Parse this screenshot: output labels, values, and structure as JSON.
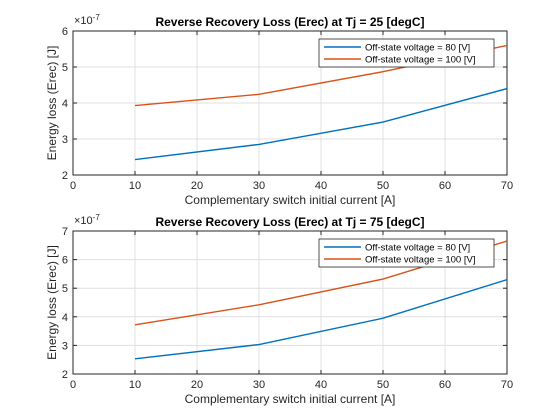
{
  "chart_data": [
    {
      "type": "line",
      "title": "Reverse Recovery Loss (Erec) at Tj = 25 [degC]",
      "xlabel": "Complementary switch initial current [A]",
      "ylabel": "Energy loss (Erec) [J]",
      "exponent_label": "×10",
      "exponent_power": "-7",
      "xlim": [
        0,
        70
      ],
      "ylim": [
        2,
        6
      ],
      "xticks": [
        "0",
        "10",
        "20",
        "30",
        "40",
        "50",
        "60",
        "70"
      ],
      "yticks": [
        "2",
        "3",
        "4",
        "5",
        "6"
      ],
      "grid": true,
      "legend_position": "top-right",
      "x": [
        10,
        30,
        50,
        70
      ],
      "series": [
        {
          "name": "Off-state voltage = 80 [V]",
          "color": "#0072bd",
          "values": [
            2.43,
            2.85,
            3.47,
            4.4
          ]
        },
        {
          "name": "Off-state voltage = 100 [V]",
          "color": "#d95319",
          "values": [
            3.93,
            4.24,
            4.87,
            5.6
          ]
        }
      ]
    },
    {
      "type": "line",
      "title": "Reverse Recovery Loss (Erec) at Tj = 75 [degC]",
      "xlabel": "Complementary switch initial current [A]",
      "ylabel": "Energy loss (Erec) [J]",
      "exponent_label": "×10",
      "exponent_power": "-7",
      "xlim": [
        0,
        70
      ],
      "ylim": [
        2,
        7
      ],
      "xticks": [
        "0",
        "10",
        "20",
        "30",
        "40",
        "50",
        "60",
        "70"
      ],
      "yticks": [
        "2",
        "3",
        "4",
        "5",
        "6",
        "7"
      ],
      "grid": true,
      "legend_position": "top-right",
      "x": [
        10,
        30,
        50,
        70
      ],
      "series": [
        {
          "name": "Off-state voltage = 80 [V]",
          "color": "#0072bd",
          "values": [
            2.53,
            3.03,
            3.95,
            5.3
          ]
        },
        {
          "name": "Off-state voltage = 100 [V]",
          "color": "#d95319",
          "values": [
            3.72,
            4.42,
            5.32,
            6.65
          ]
        }
      ]
    }
  ]
}
